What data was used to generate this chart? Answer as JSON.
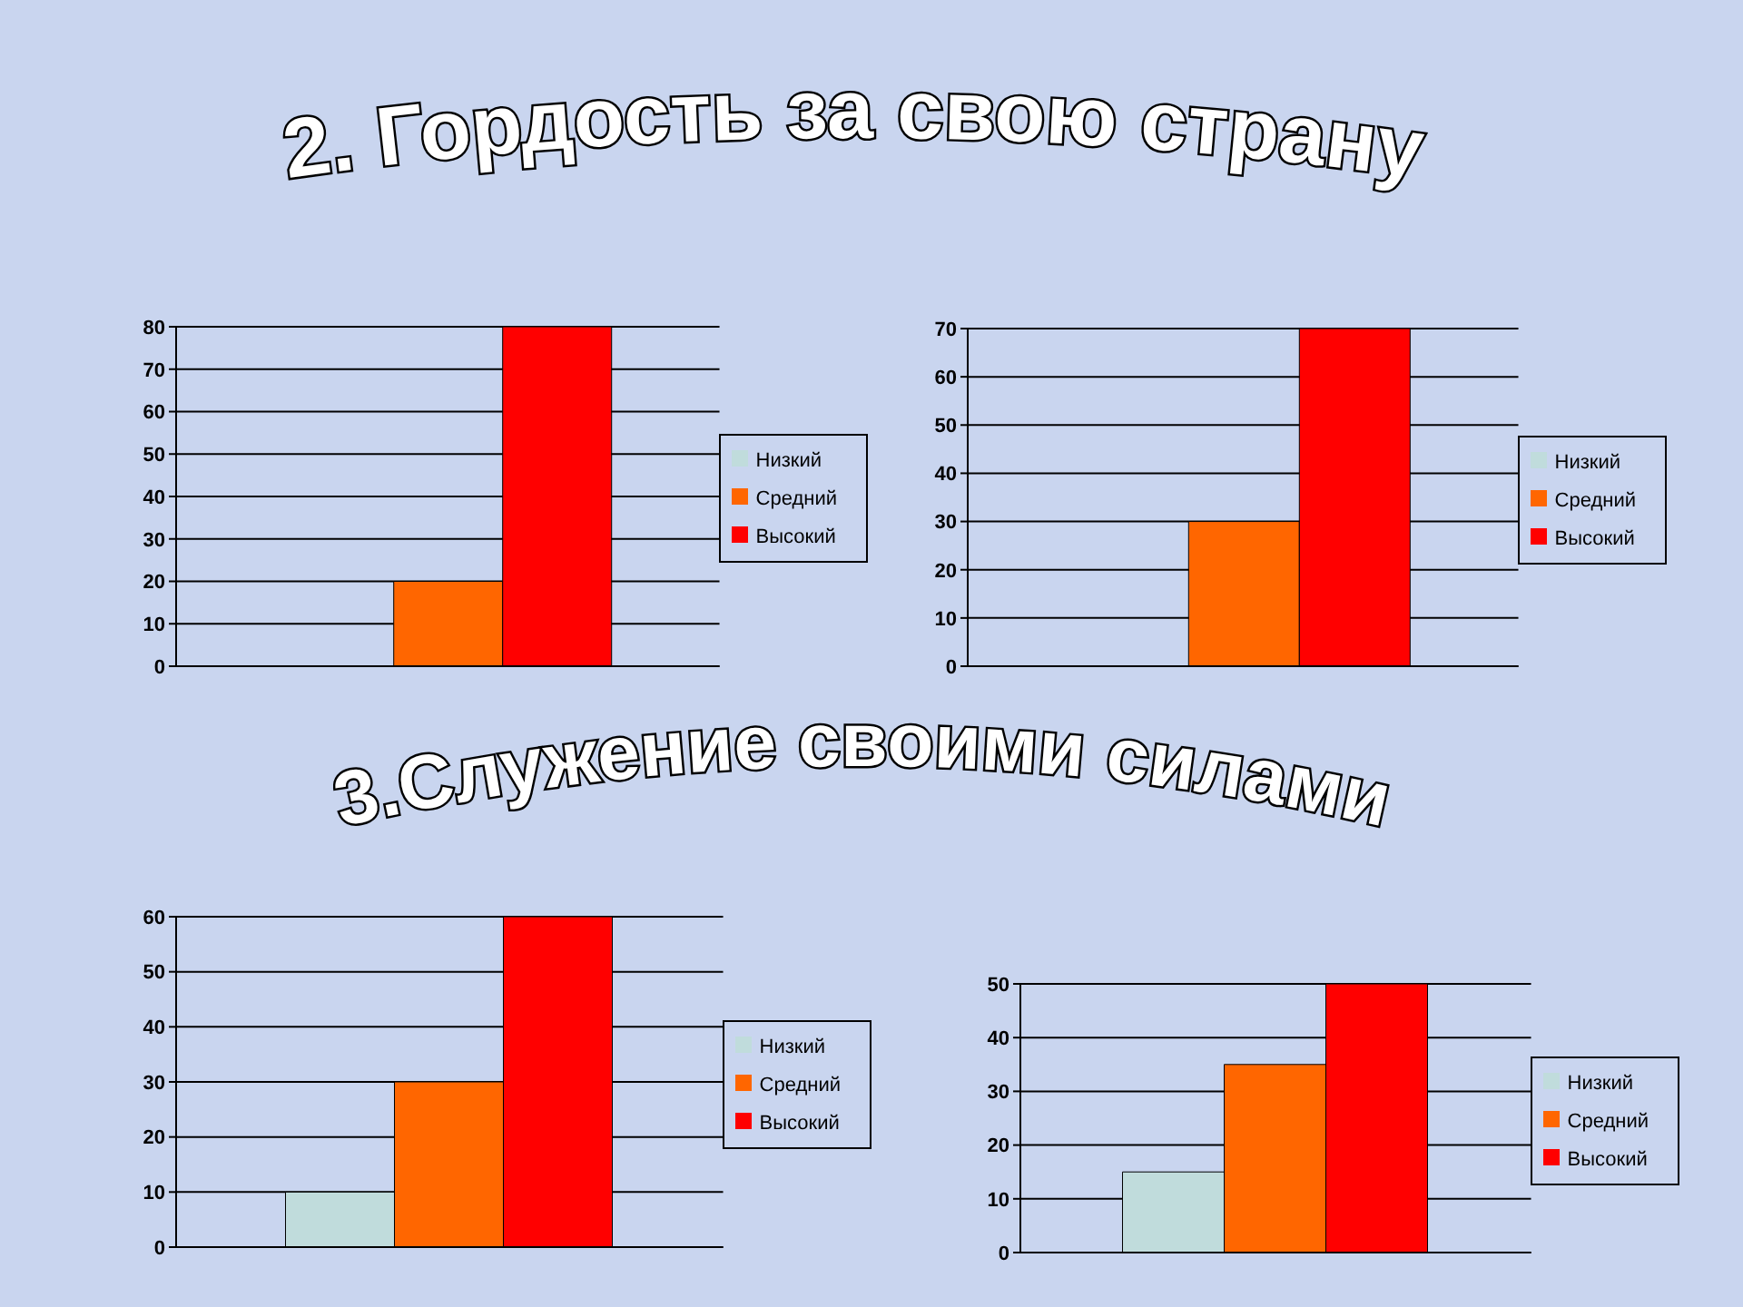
{
  "chart_data": [
    {
      "type": "bar",
      "title": "2. Гордость за свою страну",
      "categories": [
        null
      ],
      "series": [
        {
          "name": "Низкий",
          "color": "#c0dcdc",
          "values": [
            0
          ]
        },
        {
          "name": "Средний",
          "color": "#ff6600",
          "values": [
            20
          ]
        },
        {
          "name": "Высокий",
          "color": "#ff0000",
          "values": [
            80
          ]
        }
      ],
      "ylim": [
        0,
        80
      ],
      "yticks": [
        0,
        10,
        20,
        30,
        40,
        50,
        60,
        70,
        80
      ],
      "grid": "y",
      "legend": "right",
      "tick_labels": "y"
    },
    {
      "type": "bar",
      "categories": [
        null
      ],
      "series": [
        {
          "name": "Низкий",
          "color": "#c0dcdc",
          "values": [
            0
          ]
        },
        {
          "name": "Средний",
          "color": "#ff6600",
          "values": [
            30
          ]
        },
        {
          "name": "Высокий",
          "color": "#ff0000",
          "values": [
            70
          ]
        }
      ],
      "ylim": [
        0,
        70
      ],
      "yticks": [
        0,
        10,
        20,
        30,
        40,
        50,
        60,
        70
      ],
      "grid": "y",
      "legend": "right",
      "tick_labels": "y"
    },
    {
      "type": "bar",
      "title": "3.Служение своими силами",
      "categories": [
        null
      ],
      "series": [
        {
          "name": "Низкий",
          "color": "#c0dcdc",
          "values": [
            10
          ]
        },
        {
          "name": "Средний",
          "color": "#ff6600",
          "values": [
            30
          ]
        },
        {
          "name": "Высокий",
          "color": "#ff0000",
          "values": [
            60
          ]
        }
      ],
      "ylim": [
        0,
        60
      ],
      "yticks": [
        0,
        10,
        20,
        30,
        40,
        50,
        60
      ],
      "grid": "y",
      "legend": "right",
      "tick_labels": "y"
    },
    {
      "type": "bar",
      "categories": [
        null
      ],
      "series": [
        {
          "name": "Низкий",
          "color": "#c0dcdc",
          "values": [
            15
          ]
        },
        {
          "name": "Средний",
          "color": "#ff6600",
          "values": [
            35
          ]
        },
        {
          "name": "Высокий",
          "color": "#ff0000",
          "values": [
            50
          ]
        }
      ],
      "ylim": [
        0,
        50
      ],
      "yticks": [
        0,
        10,
        20,
        30,
        40,
        50
      ],
      "grid": "y",
      "legend": "right",
      "tick_labels": "y"
    }
  ]
}
